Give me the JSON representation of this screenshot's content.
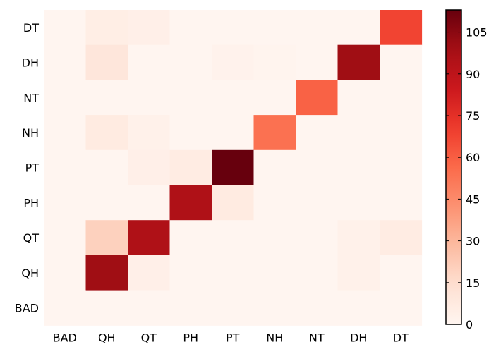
{
  "chart_data": {
    "type": "heatmap",
    "title": "",
    "xlabel": "",
    "ylabel": "",
    "x_categories": [
      "BAD",
      "QH",
      "QT",
      "PH",
      "PT",
      "NH",
      "NT",
      "DH",
      "DT"
    ],
    "y_categories": [
      "DT",
      "DH",
      "NT",
      "NH",
      "PT",
      "PH",
      "QT",
      "QH",
      "BAD"
    ],
    "values": [
      [
        0,
        5,
        4,
        0,
        0,
        0,
        0,
        0,
        68
      ],
      [
        0,
        10,
        0,
        0,
        2,
        1,
        0,
        100,
        0
      ],
      [
        0,
        0,
        0,
        0,
        0,
        0,
        59,
        0,
        0
      ],
      [
        0,
        7,
        3,
        0,
        0,
        54,
        0,
        0,
        0
      ],
      [
        0,
        0,
        4,
        6,
        113,
        0,
        0,
        0,
        0
      ],
      [
        0,
        0,
        0,
        95,
        7,
        0,
        0,
        0,
        0
      ],
      [
        0,
        20,
        95,
        0,
        0,
        0,
        0,
        3,
        6
      ],
      [
        0,
        100,
        4,
        0,
        0,
        0,
        0,
        3,
        0
      ],
      [
        0,
        0,
        0,
        0,
        0,
        0,
        0,
        0,
        0
      ]
    ],
    "vmin": 0,
    "vmax": 113,
    "colormap": "Reds",
    "colorbar_ticks": [
      0,
      15,
      30,
      45,
      60,
      75,
      90,
      105
    ]
  }
}
